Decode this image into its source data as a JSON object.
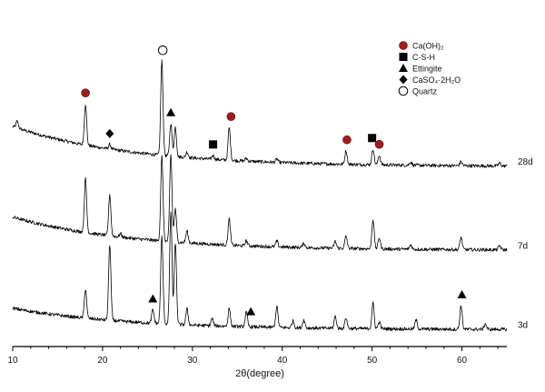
{
  "chart_data": {
    "type": "line",
    "xlabel": "2θ(degree)",
    "ylabel": "",
    "xlim": [
      10,
      65
    ],
    "xticks": [
      "10",
      "20",
      "30",
      "40",
      "50",
      "60"
    ],
    "grid": false,
    "legend_position": "top-right",
    "series": [
      {
        "name": "28d",
        "start": 0.82,
        "end": 0.11,
        "peaks": [
          [
            10.5,
            0.12
          ],
          [
            18.1,
            0.73
          ],
          [
            20.8,
            0.08
          ],
          [
            26.6,
            1.67
          ],
          [
            27.6,
            0.58
          ],
          [
            28.1,
            0.52
          ],
          [
            29.4,
            0.1
          ],
          [
            32.3,
            0.07
          ],
          [
            34.1,
            0.58
          ],
          [
            36.0,
            0.05
          ],
          [
            39.4,
            0.06
          ],
          [
            47.1,
            0.24
          ],
          [
            50.1,
            0.28
          ],
          [
            50.8,
            0.17
          ],
          [
            54.3,
            0.06
          ],
          [
            59.9,
            0.07
          ],
          [
            64.2,
            0.05
          ]
        ]
      },
      {
        "name": "7d",
        "start": 0.65,
        "end": 0.06,
        "peaks": [
          [
            18.1,
            0.95
          ],
          [
            20.8,
            0.73
          ],
          [
            22.0,
            0.06
          ],
          [
            26.6,
            1.5
          ],
          [
            27.6,
            1.55
          ],
          [
            28.1,
            0.58
          ],
          [
            29.4,
            0.21
          ],
          [
            34.1,
            0.46
          ],
          [
            36.0,
            0.09
          ],
          [
            39.4,
            0.1
          ],
          [
            42.4,
            0.08
          ],
          [
            45.9,
            0.12
          ],
          [
            47.1,
            0.22
          ],
          [
            50.1,
            0.52
          ],
          [
            50.8,
            0.2
          ],
          [
            54.3,
            0.08
          ],
          [
            59.9,
            0.22
          ],
          [
            64.2,
            0.07
          ]
        ]
      },
      {
        "name": "3d",
        "start": 0.42,
        "end": 0.04,
        "peaks": [
          [
            18.1,
            0.52
          ],
          [
            20.8,
            1.35
          ],
          [
            25.6,
            0.24
          ],
          [
            26.6,
            1.55
          ],
          [
            27.6,
            2.0
          ],
          [
            28.1,
            1.45
          ],
          [
            29.4,
            0.28
          ],
          [
            32.2,
            0.13
          ],
          [
            34.1,
            0.32
          ],
          [
            36.0,
            0.26
          ],
          [
            39.4,
            0.37
          ],
          [
            41.2,
            0.12
          ],
          [
            42.4,
            0.14
          ],
          [
            45.9,
            0.21
          ],
          [
            47.1,
            0.19
          ],
          [
            50.1,
            0.45
          ],
          [
            50.8,
            0.12
          ],
          [
            54.9,
            0.16
          ],
          [
            59.9,
            0.42
          ],
          [
            62.6,
            0.1
          ]
        ]
      }
    ],
    "markers": [
      {
        "symbol": "circle-filled",
        "x": 18.1,
        "series": "28d"
      },
      {
        "symbol": "circle-filled",
        "x": 34.3,
        "series": "28d"
      },
      {
        "symbol": "circle-filled",
        "x": 47.2,
        "series": "28d"
      },
      {
        "symbol": "circle-filled",
        "x": 50.8,
        "series": "28d"
      },
      {
        "symbol": "square",
        "x": 32.3,
        "series": "28d"
      },
      {
        "symbol": "square",
        "x": 50.0,
        "series": "28d"
      },
      {
        "symbol": "triangle",
        "x": 27.6,
        "series": "28d"
      },
      {
        "symbol": "diamond",
        "x": 20.8,
        "series": "28d"
      },
      {
        "symbol": "circle-open",
        "x": 26.7,
        "series": "28d"
      },
      {
        "symbol": "triangle",
        "x": 25.6,
        "series": "3d"
      },
      {
        "symbol": "triangle",
        "x": 36.5,
        "series": "3d"
      },
      {
        "symbol": "triangle",
        "x": 60.0,
        "series": "3d"
      }
    ],
    "legend": [
      {
        "symbol": "circle-filled",
        "label": "Ca(OH)₂"
      },
      {
        "symbol": "square",
        "label": "C-S-H"
      },
      {
        "symbol": "triangle",
        "label": "Ettingite"
      },
      {
        "symbol": "diamond",
        "label": "CaSO₄·2H₂O"
      },
      {
        "symbol": "circle-open",
        "label": "Quartz"
      }
    ],
    "colors": {
      "trace": "#000000",
      "caoh2_marker": "#a01d1d",
      "marker": "#000000"
    }
  }
}
